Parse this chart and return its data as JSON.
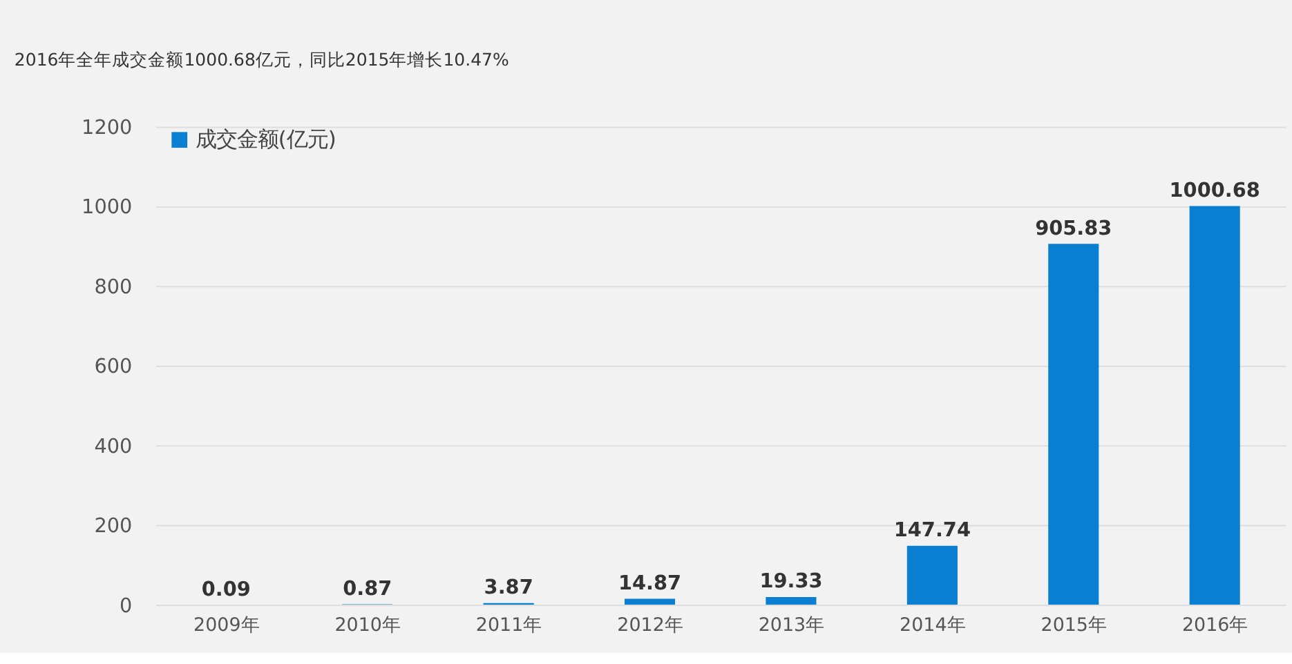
{
  "chart_data": {
    "type": "bar",
    "title": "2016年全年成交金额1000.68亿元，同比2015年增长10.47%",
    "categories": [
      "2009年",
      "2010年",
      "2011年",
      "2012年",
      "2013年",
      "2014年",
      "2015年",
      "2016年"
    ],
    "series": [
      {
        "name": "成交金额(亿元)",
        "color": "#0a7fd2",
        "values": [
          0.09,
          0.87,
          3.87,
          14.87,
          19.33,
          147.74,
          905.83,
          1000.68
        ]
      }
    ],
    "ylim": [
      0,
      1200
    ],
    "yticks": [
      0,
      200,
      400,
      600,
      800,
      1000,
      1200
    ],
    "grid": "y",
    "legend": "top left",
    "data_labels": true
  }
}
